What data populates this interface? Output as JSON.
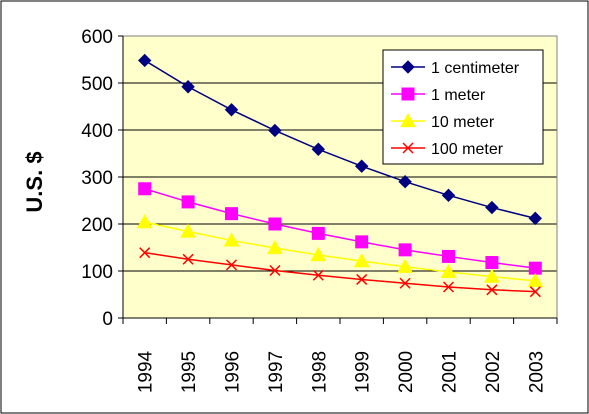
{
  "chart_data": {
    "type": "line",
    "title": "",
    "xlabel": "",
    "ylabel": "U.S. $",
    "categories": [
      "1994",
      "1995",
      "1996",
      "1997",
      "1998",
      "1999",
      "2000",
      "2001",
      "2002",
      "2003"
    ],
    "ylim": [
      0,
      600
    ],
    "yticks": [
      "0",
      "100",
      "200",
      "300",
      "400",
      "500",
      "600"
    ],
    "grid": true,
    "legend_position": "top-right",
    "plot_background": "#ffffcc",
    "series": [
      {
        "name": "1 centimeter",
        "color": "#000080",
        "marker": "diamond",
        "values": [
          548,
          492,
          443,
          399,
          359,
          323,
          290,
          261,
          235,
          212
        ]
      },
      {
        "name": "1 meter",
        "color": "#ff00ff",
        "marker": "square",
        "values": [
          275,
          247,
          222,
          200,
          180,
          162,
          145,
          131,
          118,
          106
        ]
      },
      {
        "name": "10 meter",
        "color": "#ffff00",
        "marker": "triangle",
        "values": [
          204,
          184,
          165,
          149,
          134,
          121,
          109,
          98,
          88,
          79
        ]
      },
      {
        "name": "100 meter",
        "color": "#ff0000",
        "marker": "x",
        "values": [
          139,
          125,
          113,
          101,
          91,
          82,
          74,
          66,
          60,
          56
        ]
      }
    ]
  }
}
